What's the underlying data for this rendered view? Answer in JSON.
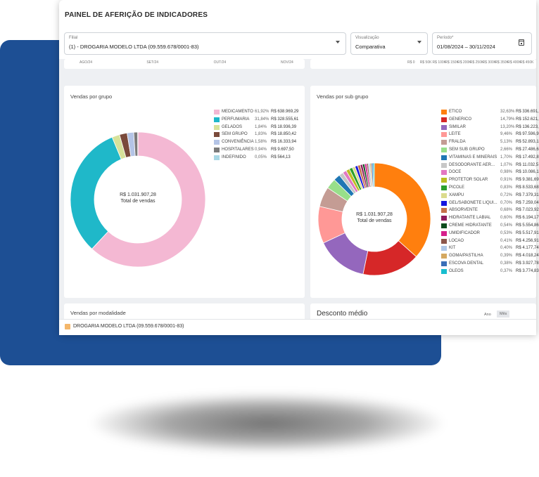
{
  "header": {
    "title": "PAINEL DE AFERIÇÃO DE INDICADORES"
  },
  "filters": {
    "filial": {
      "label": "Filial",
      "value": "(1) - DROGARIA MODELO LTDA (09.559.678/0001-83)"
    },
    "visualizacao": {
      "label": "Visualização",
      "value": "Comparativa"
    },
    "periodo": {
      "label": "Período*",
      "value": "01/08/2024 – 30/11/2024"
    }
  },
  "top_left_axis": [
    "AGO/24",
    "SET/24",
    "OUT/24",
    "NOV/24"
  ],
  "top_right_axis": [
    "R$ 0",
    "R$ 50K",
    "R$ 100K",
    "R$ 150K",
    "R$ 200K",
    "R$ 250K",
    "R$ 300K",
    "R$ 350K",
    "R$ 400K",
    "R$ 450K"
  ],
  "cards": {
    "grupo_title": "Vendas por grupo",
    "subgrupo_title": "Vendas por sub grupo",
    "modalidade_title": "Vendas por modalidade",
    "desconto_title": "Desconto médio",
    "desconto_buttons": [
      "Ano",
      "Mês"
    ]
  },
  "chart_data": [
    {
      "type": "pie",
      "title": "Vendas por grupo",
      "center_value": "R$ 1.031.907,28",
      "center_label": "Total de vendas",
      "slices": [
        {
          "name": "MEDICAMENTO",
          "percent": 61.92,
          "pct_label": "61,92%",
          "value_label": "R$ 638.969,29",
          "color": "#f4b8d3"
        },
        {
          "name": "PERFUMARIA",
          "percent": 31.84,
          "pct_label": "31,84%",
          "value_label": "R$ 328.555,61",
          "color": "#1fb8c9"
        },
        {
          "name": "GELADOS",
          "percent": 1.84,
          "pct_label": "1,84%",
          "value_label": "R$ 18.936,39",
          "color": "#d7e29a"
        },
        {
          "name": "SEM GRUPO",
          "percent": 1.83,
          "pct_label": "1,83%",
          "value_label": "R$ 18.850,42",
          "color": "#7a4a3b"
        },
        {
          "name": "CONVENIÊNCIA",
          "percent": 1.58,
          "pct_label": "1,58%",
          "value_label": "R$ 16.333,94",
          "color": "#b4c4e6"
        },
        {
          "name": "HOSPITALARES",
          "percent": 0.94,
          "pct_label": "0,94%",
          "value_label": "R$ 9.697,50",
          "color": "#7b7b7b"
        },
        {
          "name": "INDEFINIDO",
          "percent": 0.05,
          "pct_label": "0,05%",
          "value_label": "R$ 564,13",
          "color": "#a9d8e6"
        }
      ]
    },
    {
      "type": "pie",
      "title": "Vendas por sub grupo",
      "center_value": "R$ 1.031.907,28",
      "center_label": "Total de vendas",
      "slices": [
        {
          "name": "ETICO",
          "percent": 32.63,
          "pct_label": "32,63%",
          "value_label": "R$ 336.691,",
          "color": "#ff7f0e"
        },
        {
          "name": "GENERICO",
          "percent": 14.79,
          "pct_label": "14,79%",
          "value_label": "R$ 152.621,",
          "color": "#d62728"
        },
        {
          "name": "SIMILAR",
          "percent": 13.2,
          "pct_label": "13,20%",
          "value_label": "R$ 136.223,",
          "color": "#9467bd"
        },
        {
          "name": "LEITE",
          "percent": 9.46,
          "pct_label": "9,46%",
          "value_label": "R$ 97.596,9",
          "color": "#ff9896"
        },
        {
          "name": "FRALDA",
          "percent": 5.13,
          "pct_label": "5,13%",
          "value_label": "R$ 52.893,1",
          "color": "#c49c94"
        },
        {
          "name": "SEM SUB GRUPO",
          "percent": 2.66,
          "pct_label": "2,66%",
          "value_label": "R$ 27.486,6",
          "color": "#98df8a"
        },
        {
          "name": "VITAMINAS E MINERAIS",
          "percent": 1.7,
          "pct_label": "1,70%",
          "value_label": "R$ 17.492,8",
          "color": "#1f77b4"
        },
        {
          "name": "DESODORANTE AER...",
          "percent": 1.07,
          "pct_label": "1,07%",
          "value_label": "R$ 11.032,5",
          "color": "#c7c7c7"
        },
        {
          "name": "DOCE",
          "percent": 0.98,
          "pct_label": "0,98%",
          "value_label": "R$ 10.086,1",
          "color": "#e377c2"
        },
        {
          "name": "PROTETOR SOLAR",
          "percent": 0.91,
          "pct_label": "0,91%",
          "value_label": "R$ 9.381,69",
          "color": "#bcbd22"
        },
        {
          "name": "PICOLE",
          "percent": 0.83,
          "pct_label": "0,83%",
          "value_label": "R$ 8.533,68",
          "color": "#2ca02c"
        },
        {
          "name": "XAMPU",
          "percent": 0.72,
          "pct_label": "0,72%",
          "value_label": "R$ 7.379,31",
          "color": "#dbdb8d"
        },
        {
          "name": "GEL/SABONETE LIQUI...",
          "percent": 0.7,
          "pct_label": "0,70%",
          "value_label": "R$ 7.259,04",
          "color": "#1515e0"
        },
        {
          "name": "ABSORVENTE",
          "percent": 0.68,
          "pct_label": "0,68%",
          "value_label": "R$ 7.023,92",
          "color": "#c5704a"
        },
        {
          "name": "HIDRATANTE LABIAL",
          "percent": 0.6,
          "pct_label": "0,60%",
          "value_label": "R$ 6.194,17",
          "color": "#8e1a5c"
        },
        {
          "name": "CREME HIDRATANTE",
          "percent": 0.54,
          "pct_label": "0,54%",
          "value_label": "R$ 5.554,86",
          "color": "#0d4d1e"
        },
        {
          "name": "UMIDIFICADOR",
          "percent": 0.53,
          "pct_label": "0,53%",
          "value_label": "R$ 5.517,91",
          "color": "#d61f8b"
        },
        {
          "name": "LOCAO",
          "percent": 0.41,
          "pct_label": "0,41%",
          "value_label": "R$ 4.256,91",
          "color": "#8c564b"
        },
        {
          "name": "KIT",
          "percent": 0.4,
          "pct_label": "0,40%",
          "value_label": "R$ 4.177,74",
          "color": "#aec7e8"
        },
        {
          "name": "GOMA/PASTILHA",
          "percent": 0.39,
          "pct_label": "0,39%",
          "value_label": "R$ 4.018,24",
          "color": "#d4a861"
        },
        {
          "name": "ESCOVA DENTAL",
          "percent": 0.38,
          "pct_label": "0,38%",
          "value_label": "R$ 3.927,78",
          "color": "#3a6fb8"
        },
        {
          "name": "OLEOS",
          "percent": 0.37,
          "pct_label": "0,37%",
          "value_label": "R$ 3.774,83",
          "color": "#17becf"
        }
      ]
    }
  ],
  "footer": {
    "legend_label": "DROGARIA MODELO LTDA (09.559.678/0001-83)",
    "legend_color": "#f4b76b"
  }
}
